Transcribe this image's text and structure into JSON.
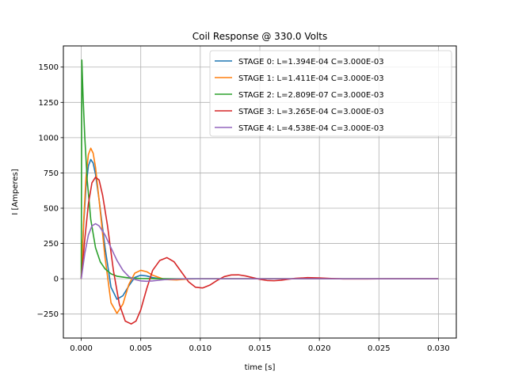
{
  "chart_data": {
    "type": "line",
    "title": "Coil Response @ 330.0 Volts",
    "xlabel": "time [s]",
    "ylabel": "I [Amperes]",
    "xlim": [
      -0.0015,
      0.0315
    ],
    "ylim": [
      -420,
      1650
    ],
    "xticks": [
      0.0,
      0.005,
      0.01,
      0.015,
      0.02,
      0.025,
      0.03
    ],
    "xtick_labels": [
      "0.000",
      "0.005",
      "0.010",
      "0.015",
      "0.020",
      "0.025",
      "0.030"
    ],
    "yticks": [
      -250,
      0,
      250,
      500,
      750,
      1000,
      1250,
      1500
    ],
    "ytick_labels": [
      "−250",
      "0",
      "250",
      "500",
      "750",
      "1000",
      "1250",
      "1500"
    ],
    "grid": true,
    "legend_position": "top-right",
    "series": [
      {
        "name": "STAGE 0: L=1.394E-04 C=3.000E-03",
        "color": "#1f77b4",
        "x": [
          0,
          0.0002,
          0.0004,
          0.0006,
          0.0008,
          0.001,
          0.0012,
          0.0015,
          0.002,
          0.0025,
          0.003,
          0.0035,
          0.004,
          0.0045,
          0.005,
          0.0055,
          0.006,
          0.007,
          0.008,
          0.009,
          0.01,
          0.012,
          0.015,
          0.02,
          0.025,
          0.03
        ],
        "y": [
          0,
          380,
          650,
          800,
          845,
          820,
          740,
          560,
          220,
          -60,
          -145,
          -120,
          -50,
          10,
          25,
          20,
          8,
          -4,
          -3,
          0,
          0,
          0,
          0,
          0,
          0,
          0
        ]
      },
      {
        "name": "STAGE 1: L=1.411E-04 C=3.000E-03",
        "color": "#ff7f0e",
        "x": [
          0,
          0.0002,
          0.0004,
          0.0006,
          0.0008,
          0.001,
          0.0012,
          0.0015,
          0.002,
          0.0025,
          0.003,
          0.0035,
          0.004,
          0.0045,
          0.005,
          0.0055,
          0.006,
          0.007,
          0.008,
          0.009,
          0.01,
          0.012,
          0.015,
          0.02,
          0.025,
          0.03
        ],
        "y": [
          0,
          400,
          720,
          880,
          925,
          890,
          790,
          560,
          150,
          -170,
          -245,
          -180,
          -40,
          40,
          60,
          50,
          25,
          -5,
          -8,
          -2,
          0,
          0,
          0,
          0,
          0,
          0
        ]
      },
      {
        "name": "STAGE 2: L=2.809E-07 C=3.000E-03",
        "color": "#2ca02c",
        "x": [
          0,
          5e-05,
          0.00015,
          0.0003,
          0.0005,
          0.0008,
          0.0012,
          0.0016,
          0.002,
          0.0025,
          0.003,
          0.004,
          0.005,
          0.006,
          0.008,
          0.01,
          0.015,
          0.02,
          0.025,
          0.03
        ],
        "y": [
          0,
          1550,
          1300,
          1000,
          700,
          420,
          220,
          120,
          70,
          35,
          18,
          6,
          2,
          1,
          0,
          0,
          0,
          0,
          0,
          0
        ]
      },
      {
        "name": "STAGE 3: L=3.265E-04 C=3.000E-03",
        "color": "#d62728",
        "x": [
          0,
          0.0003,
          0.0006,
          0.0009,
          0.0012,
          0.0015,
          0.0018,
          0.0022,
          0.0027,
          0.0032,
          0.0037,
          0.0042,
          0.0046,
          0.005,
          0.0055,
          0.006,
          0.0066,
          0.0072,
          0.0078,
          0.0084,
          0.009,
          0.0096,
          0.0102,
          0.0108,
          0.0114,
          0.012,
          0.0126,
          0.0132,
          0.0138,
          0.0144,
          0.015,
          0.0156,
          0.0162,
          0.0168,
          0.0174,
          0.018,
          0.019,
          0.02,
          0.021,
          0.022,
          0.024,
          0.026,
          0.028,
          0.03
        ],
        "y": [
          0,
          280,
          530,
          680,
          720,
          700,
          590,
          380,
          60,
          -180,
          -300,
          -320,
          -300,
          -220,
          -70,
          60,
          130,
          150,
          120,
          50,
          -20,
          -60,
          -65,
          -45,
          -12,
          15,
          27,
          28,
          20,
          8,
          -4,
          -12,
          -14,
          -10,
          -3,
          3,
          8,
          6,
          2,
          -1,
          -1,
          0,
          0,
          0
        ]
      },
      {
        "name": "STAGE 4: L=4.538E-04 C=3.000E-03",
        "color": "#9467bd",
        "x": [
          0,
          0.0003,
          0.0006,
          0.0009,
          0.0012,
          0.0015,
          0.002,
          0.0025,
          0.003,
          0.0035,
          0.004,
          0.0045,
          0.005,
          0.0055,
          0.006,
          0.0065,
          0.007,
          0.008,
          0.009,
          0.01,
          0.012,
          0.015,
          0.02,
          0.025,
          0.03
        ],
        "y": [
          0,
          180,
          310,
          375,
          390,
          375,
          310,
          220,
          130,
          60,
          15,
          -5,
          -15,
          -18,
          -15,
          -10,
          -6,
          -2,
          0,
          0,
          0,
          0,
          0,
          0,
          0
        ]
      }
    ]
  }
}
